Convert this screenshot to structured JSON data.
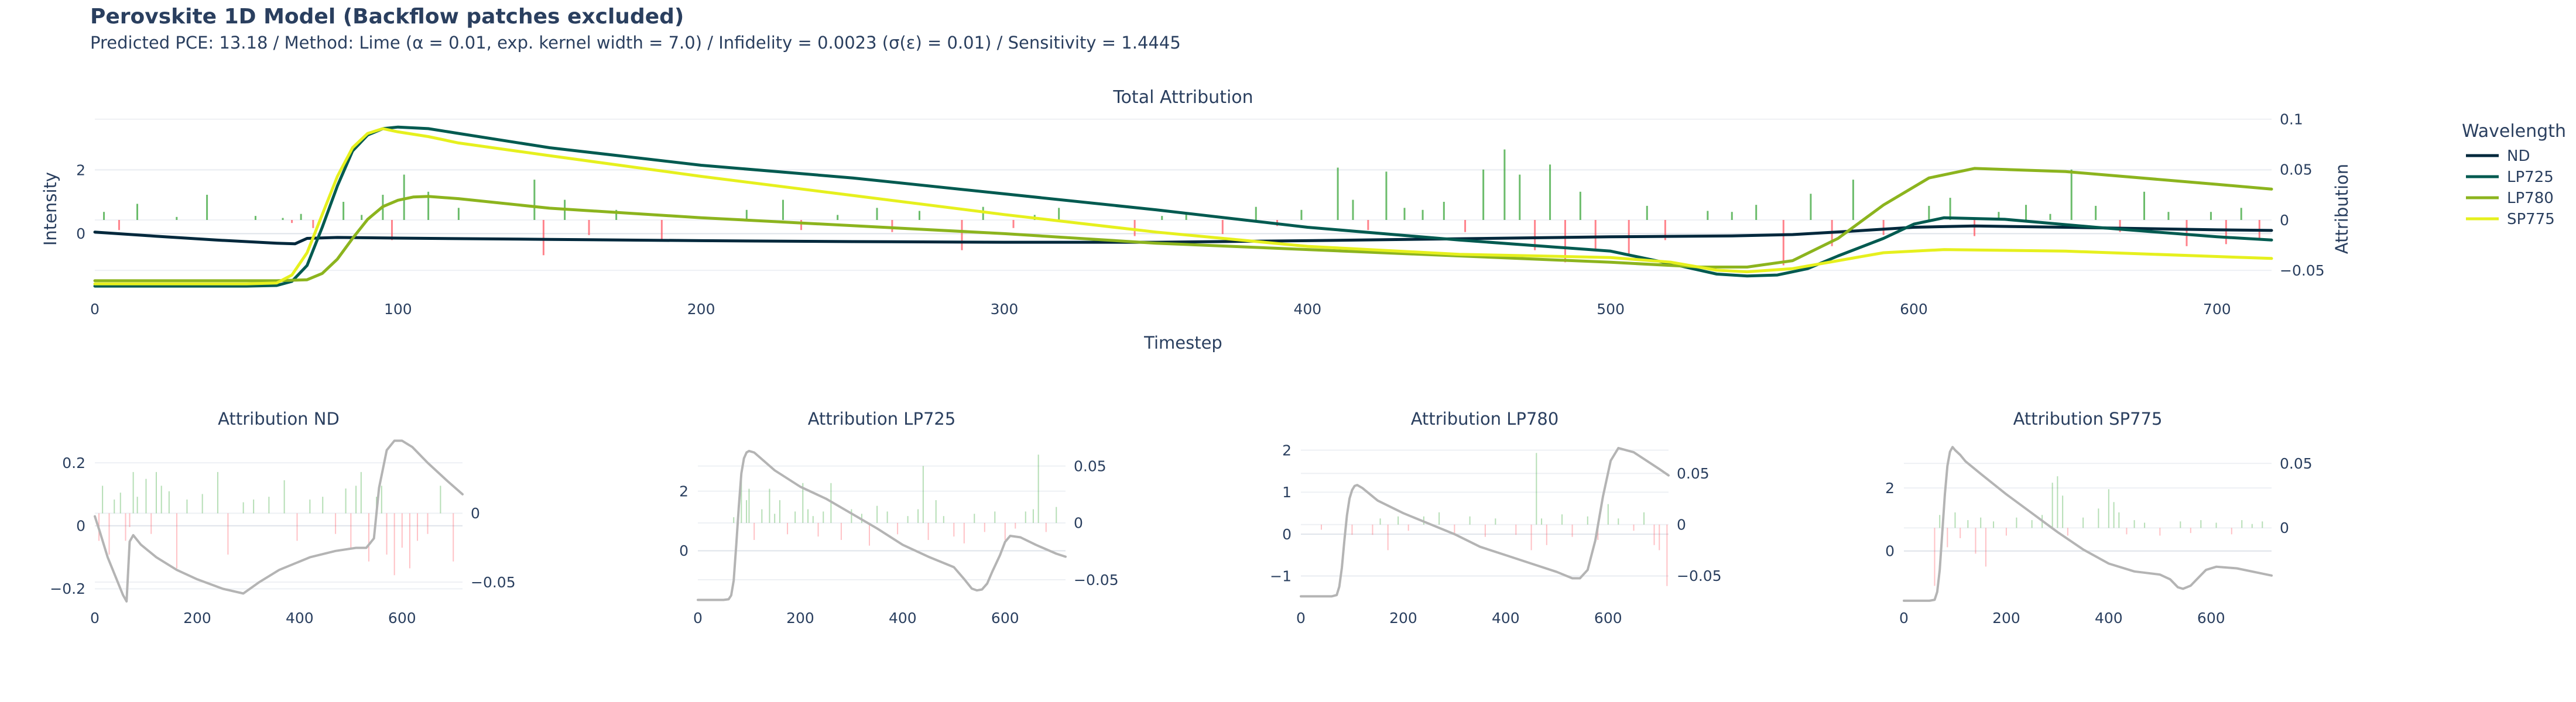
{
  "header": {
    "title": "Perovskite 1D Model (Backflow patches excluded)",
    "subtitle": "Predicted PCE: 13.18 / Method: Lime (α = 0.01, exp. kernel width = 7.0) / Infidelity = 0.0023 (σ(ε) = 0.01) / Sensitivity = 1.4445"
  },
  "colors": {
    "ND": "#00283c",
    "LP725": "#005a50",
    "LP780": "#8cb41e",
    "SP775": "#e6f01e",
    "positive_attr": "#2ca02c",
    "negative_attr": "#ff4d5a",
    "sub_line": "#b4b4b4"
  },
  "legend": {
    "title": "Wavelength",
    "items": [
      "ND",
      "LP725",
      "LP780",
      "SP775"
    ]
  },
  "chart_data": [
    {
      "type": "line",
      "title": "Total Attribution",
      "xlabel": "Timestep",
      "ylabel": "Intensity",
      "y2label": "Attribution",
      "xlim": [
        0,
        718
      ],
      "ylim": [
        -1.85,
        3.85
      ],
      "y2lim": [
        -0.072,
        0.108
      ],
      "xticks": [
        0,
        100,
        200,
        300,
        400,
        500,
        600,
        700
      ],
      "yticks": [
        0,
        2
      ],
      "y2ticks": [
        -0.05,
        0,
        0.05,
        0.1
      ],
      "y2ticklabels": [
        "−0.05",
        "0",
        "0.05",
        "0.1"
      ],
      "series": [
        {
          "name": "ND",
          "x": [
            0,
            20,
            40,
            60,
            66,
            70,
            80,
            100,
            150,
            200,
            250,
            300,
            350,
            400,
            450,
            500,
            540,
            560,
            580,
            600,
            620,
            650,
            700,
            718
          ],
          "y": [
            0.05,
            -0.08,
            -0.2,
            -0.3,
            -0.32,
            -0.15,
            -0.12,
            -0.14,
            -0.18,
            -0.22,
            -0.25,
            -0.27,
            -0.27,
            -0.22,
            -0.16,
            -0.1,
            -0.07,
            -0.03,
            0.08,
            0.2,
            0.24,
            0.2,
            0.12,
            0.1
          ]
        },
        {
          "name": "LP725",
          "x": [
            0,
            50,
            60,
            65,
            70,
            75,
            80,
            85,
            90,
            95,
            100,
            110,
            120,
            150,
            200,
            250,
            300,
            350,
            400,
            450,
            500,
            520,
            535,
            545,
            555,
            565,
            575,
            590,
            600,
            610,
            630,
            660,
            700,
            718
          ],
          "y": [
            -1.65,
            -1.65,
            -1.63,
            -1.5,
            -1.0,
            0.2,
            1.5,
            2.6,
            3.1,
            3.3,
            3.35,
            3.3,
            3.15,
            2.7,
            2.15,
            1.75,
            1.25,
            0.75,
            0.2,
            -0.2,
            -0.55,
            -0.95,
            -1.27,
            -1.33,
            -1.3,
            -1.1,
            -0.7,
            -0.15,
            0.3,
            0.5,
            0.45,
            0.2,
            -0.1,
            -0.2
          ]
        },
        {
          "name": "LP780",
          "x": [
            0,
            60,
            70,
            75,
            80,
            85,
            90,
            95,
            100,
            105,
            110,
            120,
            150,
            200,
            250,
            300,
            350,
            400,
            450,
            500,
            530,
            545,
            560,
            575,
            590,
            605,
            620,
            650,
            700,
            718
          ],
          "y": [
            -1.48,
            -1.48,
            -1.45,
            -1.25,
            -0.8,
            -0.15,
            0.45,
            0.85,
            1.05,
            1.15,
            1.17,
            1.1,
            0.8,
            0.5,
            0.25,
            0.0,
            -0.3,
            -0.5,
            -0.7,
            -0.9,
            -1.05,
            -1.05,
            -0.85,
            -0.15,
            0.9,
            1.75,
            2.05,
            1.95,
            1.55,
            1.4
          ]
        },
        {
          "name": "SP775",
          "x": [
            0,
            50,
            60,
            65,
            70,
            75,
            80,
            85,
            90,
            95,
            100,
            110,
            120,
            150,
            200,
            250,
            300,
            350,
            400,
            450,
            500,
            520,
            535,
            545,
            560,
            575,
            590,
            610,
            650,
            700,
            718
          ],
          "y": [
            -1.58,
            -1.58,
            -1.55,
            -1.3,
            -0.6,
            0.6,
            1.8,
            2.7,
            3.15,
            3.3,
            3.2,
            3.05,
            2.85,
            2.45,
            1.8,
            1.2,
            0.6,
            0.05,
            -0.4,
            -0.65,
            -0.75,
            -0.9,
            -1.15,
            -1.2,
            -1.1,
            -0.85,
            -0.6,
            -0.5,
            -0.55,
            -0.72,
            -0.78
          ]
        }
      ],
      "attribution": {
        "x": [
          3,
          8,
          14,
          27,
          37,
          53,
          62,
          65,
          68,
          72,
          82,
          88,
          95,
          98,
          102,
          110,
          120,
          145,
          148,
          155,
          163,
          172,
          187,
          215,
          227,
          233,
          245,
          258,
          263,
          272,
          286,
          293,
          303,
          310,
          318,
          343,
          352,
          360,
          372,
          383,
          390,
          398,
          410,
          415,
          420,
          426,
          432,
          438,
          445,
          452,
          458,
          465,
          470,
          475,
          480,
          485,
          490,
          495,
          506,
          512,
          518,
          532,
          540,
          548,
          557,
          566,
          573,
          580,
          590,
          605,
          612,
          620,
          628,
          637,
          645,
          652,
          660,
          668,
          676,
          684,
          690,
          698,
          703,
          708,
          714
        ],
        "y": [
          0.008,
          -0.01,
          0.016,
          0.003,
          0.025,
          0.004,
          0.002,
          -0.003,
          0.006,
          -0.008,
          0.018,
          0.005,
          0.025,
          -0.02,
          0.045,
          0.028,
          0.012,
          0.04,
          -0.035,
          0.02,
          -0.015,
          0.01,
          -0.02,
          0.01,
          0.02,
          -0.01,
          0.005,
          0.012,
          -0.012,
          0.009,
          -0.03,
          0.013,
          -0.008,
          0.005,
          0.012,
          -0.016,
          0.004,
          0.007,
          -0.014,
          0.013,
          -0.006,
          0.01,
          0.052,
          0.02,
          -0.01,
          0.048,
          0.012,
          0.01,
          0.018,
          -0.012,
          0.05,
          0.07,
          0.045,
          -0.03,
          0.055,
          -0.042,
          0.028,
          -0.03,
          -0.035,
          0.014,
          -0.02,
          0.009,
          0.008,
          0.015,
          -0.045,
          0.026,
          -0.026,
          0.04,
          -0.015,
          0.014,
          0.022,
          -0.016,
          0.008,
          0.015,
          0.006,
          0.05,
          0.014,
          -0.012,
          0.028,
          0.008,
          -0.026,
          0.008,
          -0.024,
          0.012,
          -0.018
        ]
      }
    },
    {
      "type": "line",
      "title": "Attribution ND",
      "xlim": [
        0,
        718
      ],
      "ylim": [
        -0.24,
        0.28
      ],
      "y2lim": [
        -0.064,
        0.055
      ],
      "xticks": [
        0,
        200,
        400,
        600
      ],
      "yticks": [
        -0.2,
        0,
        0.2
      ],
      "y2ticks": [
        -0.05,
        0
      ],
      "yticklabels": [
        "−0.2",
        "0",
        "0.2"
      ],
      "y2ticklabels": [
        "−0.05",
        "0"
      ],
      "line": {
        "x": [
          0,
          10,
          25,
          40,
          55,
          62,
          68,
          75,
          90,
          120,
          160,
          200,
          250,
          290,
          320,
          360,
          420,
          470,
          510,
          530,
          545,
          555,
          570,
          585,
          600,
          620,
          650,
          690,
          718
        ],
        "y": [
          0.03,
          -0.02,
          -0.1,
          -0.16,
          -0.22,
          -0.24,
          -0.05,
          -0.03,
          -0.06,
          -0.1,
          -0.14,
          -0.17,
          -0.2,
          -0.215,
          -0.18,
          -0.14,
          -0.1,
          -0.08,
          -0.07,
          -0.07,
          -0.04,
          0.12,
          0.24,
          0.27,
          0.27,
          0.25,
          0.2,
          0.14,
          0.1
        ]
      },
      "attribution": {
        "x": [
          8,
          15,
          28,
          38,
          50,
          60,
          68,
          75,
          83,
          100,
          110,
          120,
          130,
          145,
          160,
          180,
          210,
          240,
          260,
          290,
          310,
          340,
          370,
          395,
          420,
          445,
          470,
          490,
          500,
          510,
          520,
          535,
          550,
          560,
          570,
          585,
          600,
          615,
          630,
          650,
          675,
          700
        ],
        "y": [
          -0.02,
          0.02,
          -0.03,
          0.01,
          0.015,
          -0.02,
          -0.01,
          0.03,
          0.012,
          0.025,
          -0.015,
          0.03,
          0.02,
          0.016,
          -0.04,
          0.01,
          0.014,
          0.03,
          -0.03,
          0.008,
          0.01,
          0.012,
          0.024,
          -0.02,
          0.01,
          0.012,
          -0.015,
          0.018,
          -0.025,
          0.02,
          0.03,
          -0.035,
          0.012,
          0.02,
          -0.03,
          -0.045,
          -0.025,
          -0.04,
          -0.02,
          -0.015,
          0.02,
          -0.035
        ]
      }
    },
    {
      "type": "line",
      "title": "Attribution LP725",
      "xlim": [
        0,
        718
      ],
      "ylim": [
        -1.7,
        3.8
      ],
      "y2lim": [
        -0.069,
        0.075
      ],
      "xticks": [
        0,
        200,
        400,
        600
      ],
      "yticks": [
        0,
        2
      ],
      "y2ticks": [
        -0.05,
        0,
        0.05
      ],
      "y2ticklabels": [
        "−0.05",
        "0",
        "0.05"
      ],
      "line": {
        "x": [
          0,
          50,
          60,
          65,
          70,
          75,
          80,
          85,
          90,
          95,
          100,
          110,
          120,
          150,
          200,
          250,
          300,
          350,
          400,
          450,
          500,
          520,
          535,
          545,
          555,
          565,
          575,
          590,
          600,
          610,
          630,
          660,
          700,
          718
        ],
        "y": [
          -1.65,
          -1.65,
          -1.63,
          -1.5,
          -1.0,
          0.2,
          1.5,
          2.6,
          3.1,
          3.3,
          3.35,
          3.3,
          3.15,
          2.7,
          2.15,
          1.75,
          1.25,
          0.75,
          0.2,
          -0.2,
          -0.55,
          -0.95,
          -1.27,
          -1.33,
          -1.3,
          -1.1,
          -0.7,
          -0.15,
          0.3,
          0.5,
          0.45,
          0.2,
          -0.1,
          -0.2
        ]
      },
      "attribution": {
        "x": [
          70,
          85,
          95,
          100,
          110,
          125,
          140,
          150,
          160,
          175,
          190,
          205,
          215,
          225,
          235,
          245,
          260,
          280,
          300,
          320,
          335,
          350,
          370,
          390,
          410,
          430,
          440,
          450,
          465,
          480,
          500,
          520,
          540,
          560,
          580,
          600,
          620,
          640,
          655,
          665,
          680,
          700
        ],
        "y": [
          0.005,
          0.045,
          0.02,
          0.03,
          -0.015,
          0.012,
          0.03,
          0.008,
          0.02,
          -0.01,
          0.01,
          0.035,
          0.012,
          0.006,
          -0.012,
          0.01,
          0.035,
          -0.015,
          0.012,
          0.008,
          -0.02,
          0.015,
          0.01,
          -0.01,
          0.006,
          0.012,
          0.05,
          -0.015,
          0.02,
          0.006,
          -0.012,
          -0.018,
          0.008,
          -0.008,
          0.01,
          -0.015,
          -0.005,
          0.01,
          0.012,
          0.06,
          -0.008,
          0.014
        ]
      }
    },
    {
      "type": "line",
      "title": "Attribution LP780",
      "xlim": [
        0,
        718
      ],
      "ylim": [
        -1.6,
        2.3
      ],
      "y2lim": [
        -0.075,
        0.085
      ],
      "xticks": [
        0,
        200,
        400,
        600
      ],
      "yticks": [
        -1,
        0,
        1,
        2
      ],
      "y2ticks": [
        -0.05,
        0,
        0.05
      ],
      "yticklabels": [
        "−1",
        "0",
        "1",
        "2"
      ],
      "y2ticklabels": [
        "−0.05",
        "0",
        "0.05"
      ],
      "line": {
        "x": [
          0,
          60,
          70,
          75,
          80,
          85,
          90,
          95,
          100,
          105,
          110,
          120,
          150,
          200,
          250,
          300,
          350,
          400,
          450,
          500,
          530,
          545,
          560,
          575,
          590,
          605,
          620,
          650,
          700,
          718
        ],
        "y": [
          -1.48,
          -1.48,
          -1.45,
          -1.25,
          -0.8,
          -0.15,
          0.45,
          0.85,
          1.05,
          1.15,
          1.17,
          1.1,
          0.8,
          0.5,
          0.25,
          0.0,
          -0.3,
          -0.5,
          -0.7,
          -0.9,
          -1.05,
          -1.05,
          -0.85,
          -0.15,
          0.9,
          1.75,
          2.05,
          1.95,
          1.55,
          1.4
        ]
      },
      "attribution": {
        "x": [
          40,
          100,
          140,
          155,
          170,
          190,
          210,
          240,
          270,
          300,
          330,
          360,
          380,
          420,
          450,
          460,
          470,
          480,
          510,
          530,
          560,
          580,
          600,
          620,
          650,
          670,
          690,
          700,
          715
        ],
        "y": [
          -0.005,
          -0.01,
          -0.01,
          0.006,
          -0.025,
          0.008,
          -0.006,
          0.008,
          0.012,
          -0.01,
          0.008,
          -0.012,
          0.006,
          -0.01,
          -0.025,
          0.07,
          0.006,
          -0.02,
          0.01,
          -0.012,
          0.008,
          -0.015,
          0.02,
          0.006,
          -0.006,
          0.012,
          -0.02,
          -0.025,
          -0.06
        ]
      }
    },
    {
      "type": "line",
      "title": "Attribution SP775",
      "xlim": [
        0,
        718
      ],
      "ylim": [
        -1.6,
        3.6
      ],
      "y2lim": [
        -0.057,
        0.07
      ],
      "xticks": [
        0,
        200,
        400,
        600
      ],
      "yticks": [
        0,
        2
      ],
      "y2ticks": [
        0,
        0.05
      ],
      "y2ticklabels": [
        "0",
        "0.05"
      ],
      "line": {
        "x": [
          0,
          50,
          60,
          65,
          70,
          75,
          80,
          85,
          90,
          95,
          100,
          110,
          120,
          150,
          200,
          250,
          300,
          350,
          400,
          450,
          500,
          520,
          535,
          545,
          560,
          575,
          590,
          610,
          650,
          700,
          718
        ],
        "y": [
          -1.58,
          -1.58,
          -1.55,
          -1.3,
          -0.6,
          0.6,
          1.8,
          2.7,
          3.15,
          3.3,
          3.2,
          3.05,
          2.85,
          2.45,
          1.8,
          1.2,
          0.6,
          0.05,
          -0.4,
          -0.65,
          -0.75,
          -0.9,
          -1.15,
          -1.2,
          -1.1,
          -0.85,
          -0.6,
          -0.5,
          -0.55,
          -0.72,
          -0.78
        ]
      },
      "attribution": {
        "x": [
          60,
          70,
          85,
          100,
          110,
          125,
          140,
          150,
          160,
          175,
          200,
          220,
          250,
          270,
          290,
          300,
          310,
          320,
          350,
          380,
          400,
          410,
          420,
          435,
          450,
          470,
          500,
          540,
          560,
          580,
          610,
          640,
          660,
          680,
          700
        ],
        "y": [
          -0.045,
          0.01,
          -0.015,
          0.012,
          -0.008,
          0.006,
          -0.02,
          0.008,
          -0.03,
          0.005,
          -0.006,
          0.008,
          0.006,
          0.01,
          0.035,
          0.04,
          0.025,
          -0.006,
          0.008,
          0.015,
          0.03,
          0.02,
          0.012,
          -0.005,
          0.006,
          0.004,
          -0.006,
          0.005,
          -0.004,
          0.006,
          0.004,
          -0.005,
          0.006,
          0.003,
          0.005
        ]
      }
    }
  ]
}
